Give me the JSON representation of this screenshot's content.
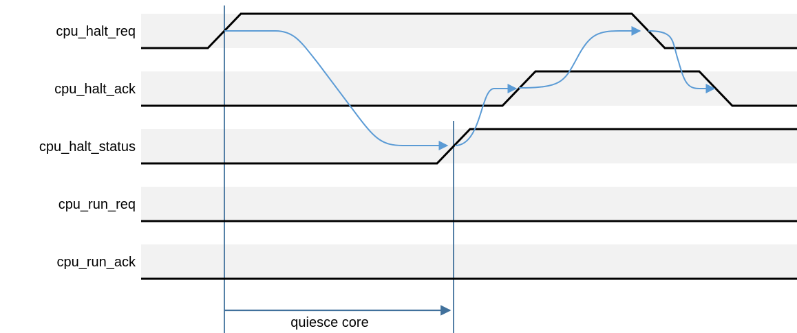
{
  "signals": [
    {
      "id": "halt-req",
      "name": "cpu_halt_req"
    },
    {
      "id": "halt-ack",
      "name": "cpu_halt_ack"
    },
    {
      "id": "halt-status",
      "name": "cpu_halt_status"
    },
    {
      "id": "run-req",
      "name": "cpu_run_req"
    },
    {
      "id": "run-ack",
      "name": "cpu_run_ack"
    }
  ],
  "annotation": {
    "label": "quiesce core"
  },
  "colors": {
    "lane_background": "#f2f2f2",
    "waveform": "#000000",
    "causality_arrow": "#5b9bd5",
    "marker_line": "#41719c",
    "span_arrow": "#41719c"
  }
}
